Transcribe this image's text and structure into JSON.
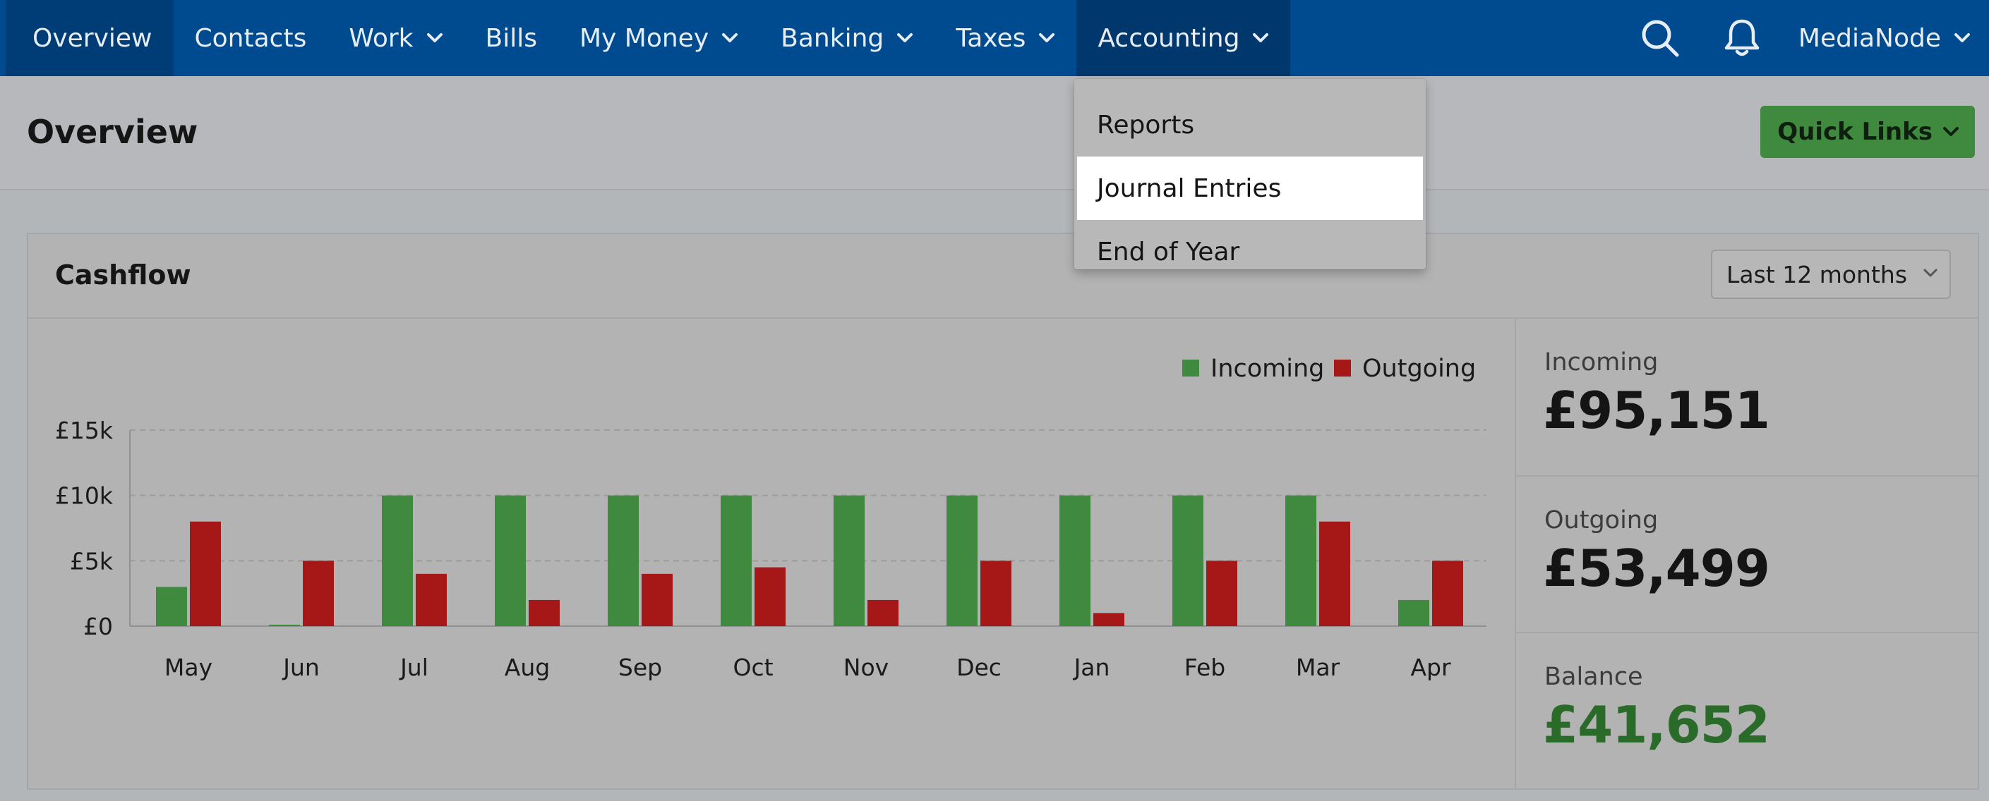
{
  "nav": {
    "items": [
      {
        "label": "Overview",
        "has_menu": false
      },
      {
        "label": "Contacts",
        "has_menu": false
      },
      {
        "label": "Work",
        "has_menu": true
      },
      {
        "label": "Bills",
        "has_menu": false
      },
      {
        "label": "My Money",
        "has_menu": true
      },
      {
        "label": "Banking",
        "has_menu": true
      },
      {
        "label": "Taxes",
        "has_menu": true
      },
      {
        "label": "Accounting",
        "has_menu": true
      }
    ],
    "user": "MediaNode",
    "bg_color": "#004a8f"
  },
  "accounting_menu": {
    "items": [
      "Reports",
      "Journal Entries",
      "End of Year"
    ],
    "highlighted": "Journal Entries"
  },
  "page": {
    "title": "Overview",
    "quick_links_label": "Quick Links"
  },
  "cashflow": {
    "title": "Cashflow",
    "period": "Last 12 months",
    "stats": [
      {
        "label": "Incoming",
        "value": "£95,151",
        "color": "#141414"
      },
      {
        "label": "Outgoing",
        "value": "£53,499",
        "color": "#141414"
      },
      {
        "label": "Balance",
        "value": "£41,652",
        "color": "#2a6b2a"
      }
    ]
  },
  "chart_data": {
    "type": "bar",
    "categories": [
      "May",
      "Jun",
      "Jul",
      "Aug",
      "Sep",
      "Oct",
      "Nov",
      "Dec",
      "Jan",
      "Feb",
      "Mar",
      "Apr"
    ],
    "series": [
      {
        "name": "Incoming",
        "color": "#3f8a3e",
        "values": [
          3000,
          0,
          10000,
          10000,
          10000,
          10000,
          10000,
          10000,
          10000,
          10000,
          10000,
          2000
        ]
      },
      {
        "name": "Outgoing",
        "color": "#a61818",
        "values": [
          8000,
          5000,
          4000,
          2000,
          4000,
          4500,
          2000,
          5000,
          1000,
          5000,
          8000,
          5000
        ]
      }
    ],
    "yticks": [
      {
        "value": 0,
        "label": "£0"
      },
      {
        "value": 5000,
        "label": "£5k"
      },
      {
        "value": 10000,
        "label": "£10k"
      },
      {
        "value": 15000,
        "label": "£15k"
      }
    ],
    "ylim": [
      0,
      15000
    ],
    "grid": true,
    "legend": "top-right"
  }
}
